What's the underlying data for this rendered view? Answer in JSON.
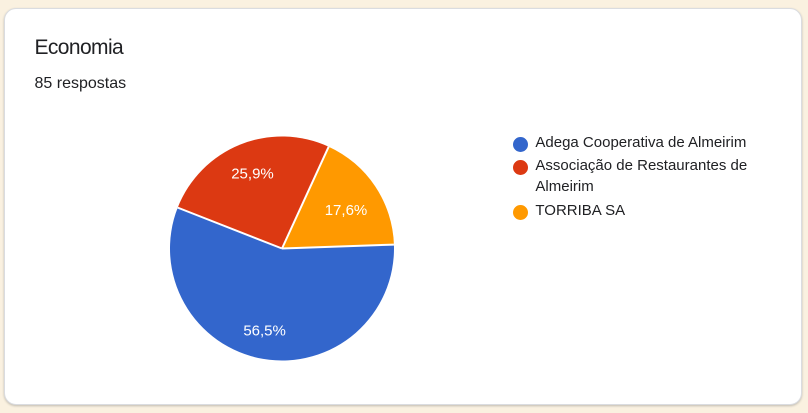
{
  "page": {
    "background_color": "#faf1e0"
  },
  "card": {
    "background_color": "#ffffff",
    "border_color": "#dadce0",
    "title": "Economia",
    "responses_count": "85 respostas"
  },
  "chart_data": {
    "type": "pie",
    "title": "Economia",
    "subtitle": "85 respostas",
    "categories": [
      "Adega Cooperativa de Almeirim",
      "Associação de Restaurantes de Almeirim",
      "TORRIBA SA"
    ],
    "values": [
      56.5,
      25.9,
      17.6
    ],
    "value_labels": [
      "56,5%",
      "25,9%",
      "17,6%"
    ],
    "colors": [
      "#3366cc",
      "#dc3912",
      "#ff9900"
    ],
    "slice_label_color": "#ffffff",
    "start_angle_deg": 88,
    "direction": "clockwise",
    "legend_position": "right"
  },
  "legend": {
    "items": [
      {
        "label": "Adega Cooperativa de Almeirim",
        "color": "#3366cc"
      },
      {
        "label": "Associação de Restaurantes de Almeirim",
        "color": "#dc3912"
      },
      {
        "label": "TORRIBA SA",
        "color": "#ff9900"
      }
    ]
  }
}
